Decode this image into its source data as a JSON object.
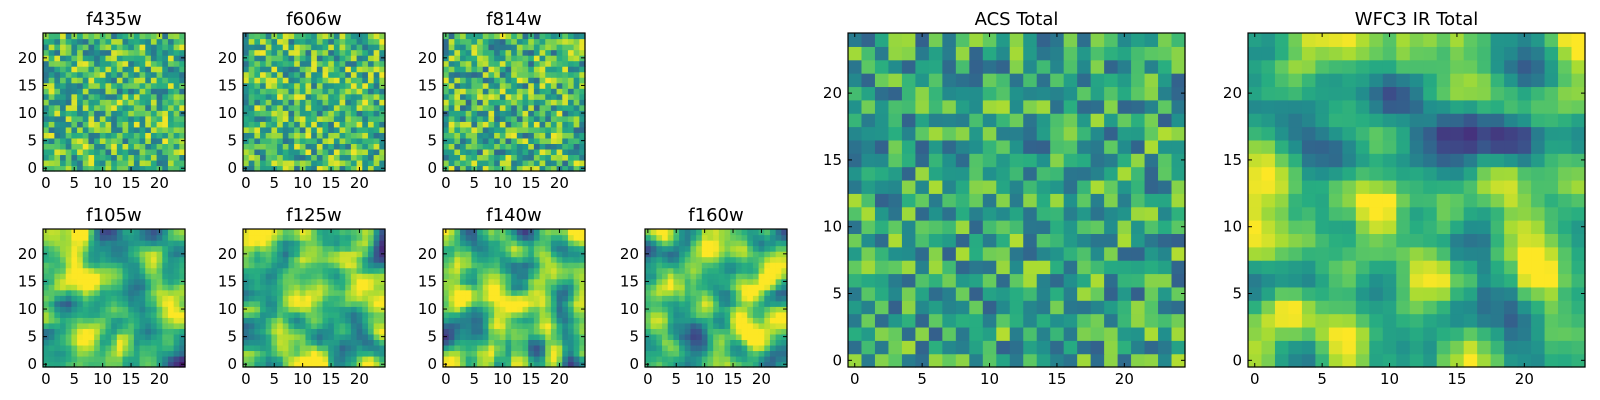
{
  "chart_data": [
    {
      "type": "heatmap",
      "title": "f435w",
      "grid_size": 25,
      "xlim": [
        -0.5,
        24.5
      ],
      "ylim": [
        -0.5,
        24.5
      ],
      "xticks": [
        0,
        5,
        10,
        15,
        20
      ],
      "yticks": [
        0,
        5,
        10,
        15,
        20
      ],
      "colormap": "viridis",
      "texture": "pixel-noise",
      "seed": 11,
      "mean": 0.68,
      "spread": 0.2
    },
    {
      "type": "heatmap",
      "title": "f606w",
      "grid_size": 25,
      "xlim": [
        -0.5,
        24.5
      ],
      "ylim": [
        -0.5,
        24.5
      ],
      "xticks": [
        0,
        5,
        10,
        15,
        20
      ],
      "yticks": [
        0,
        5,
        10,
        15,
        20
      ],
      "colormap": "viridis",
      "texture": "pixel-noise",
      "seed": 23,
      "mean": 0.68,
      "spread": 0.2
    },
    {
      "type": "heatmap",
      "title": "f814w",
      "grid_size": 25,
      "xlim": [
        -0.5,
        24.5
      ],
      "ylim": [
        -0.5,
        24.5
      ],
      "xticks": [
        0,
        5,
        10,
        15,
        20
      ],
      "yticks": [
        0,
        5,
        10,
        15,
        20
      ],
      "colormap": "viridis",
      "texture": "pixel-noise",
      "seed": 37,
      "mean": 0.66,
      "spread": 0.21
    },
    {
      "type": "heatmap",
      "title": "f105w",
      "grid_size": 25,
      "xlim": [
        -0.5,
        24.5
      ],
      "ylim": [
        -0.5,
        24.5
      ],
      "xticks": [
        0,
        5,
        10,
        15,
        20
      ],
      "yticks": [
        0,
        5,
        10,
        15,
        20
      ],
      "colormap": "viridis",
      "texture": "smooth",
      "seed": 41,
      "mean": 0.68,
      "spread": 0.2
    },
    {
      "type": "heatmap",
      "title": "f125w",
      "grid_size": 25,
      "xlim": [
        -0.5,
        24.5
      ],
      "ylim": [
        -0.5,
        24.5
      ],
      "xticks": [
        0,
        5,
        10,
        15,
        20
      ],
      "yticks": [
        0,
        5,
        10,
        15,
        20
      ],
      "colormap": "viridis",
      "texture": "smooth",
      "seed": 53,
      "mean": 0.7,
      "spread": 0.2
    },
    {
      "type": "heatmap",
      "title": "f140w",
      "grid_size": 25,
      "xlim": [
        -0.5,
        24.5
      ],
      "ylim": [
        -0.5,
        24.5
      ],
      "xticks": [
        0,
        5,
        10,
        15,
        20
      ],
      "yticks": [
        0,
        5,
        10,
        15,
        20
      ],
      "colormap": "viridis",
      "texture": "smooth",
      "seed": 67,
      "mean": 0.7,
      "spread": 0.21
    },
    {
      "type": "heatmap",
      "title": "f160w",
      "grid_size": 25,
      "xlim": [
        -0.5,
        24.5
      ],
      "ylim": [
        -0.5,
        24.5
      ],
      "xticks": [
        0,
        5,
        10,
        15,
        20
      ],
      "yticks": [
        0,
        5,
        10,
        15,
        20
      ],
      "colormap": "viridis",
      "texture": "smooth",
      "seed": 79,
      "mean": 0.7,
      "spread": 0.21
    },
    {
      "type": "heatmap",
      "title": "ACS Total",
      "grid_size": 25,
      "xlim": [
        -0.5,
        24.5
      ],
      "ylim": [
        -0.5,
        24.5
      ],
      "xticks": [
        0,
        5,
        10,
        15,
        20
      ],
      "yticks": [
        0,
        5,
        10,
        15,
        20
      ],
      "colormap": "viridis",
      "texture": "pixel-noise",
      "seed": 89,
      "mean": 0.6,
      "spread": 0.19
    },
    {
      "type": "heatmap",
      "title": "WFC3 IR Total",
      "grid_size": 25,
      "xlim": [
        -0.5,
        24.5
      ],
      "ylim": [
        -0.5,
        24.5
      ],
      "xticks": [
        0,
        5,
        10,
        15,
        20
      ],
      "yticks": [
        0,
        5,
        10,
        15,
        20
      ],
      "colormap": "viridis",
      "texture": "smooth",
      "seed": 97,
      "mean": 0.66,
      "spread": 0.2
    }
  ]
}
